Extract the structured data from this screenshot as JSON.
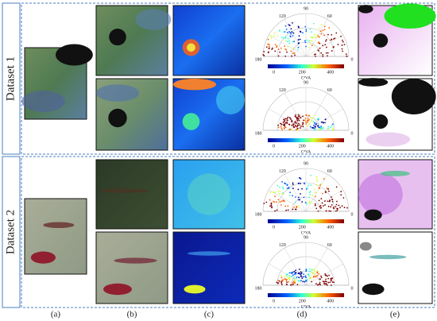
{
  "figure": {
    "row_labels": [
      "Dataset 1",
      "Dataset 2"
    ],
    "column_labels": [
      "(a)",
      "(b)",
      "(c)",
      "(d)",
      "(e)"
    ],
    "polar_plot": {
      "angle_labels": [
        "90",
        "120",
        "60",
        "180",
        "0"
      ],
      "colorbar_ticks": [
        "0",
        "200",
        "400"
      ],
      "colorbar_label": "C²VA"
    }
  }
}
